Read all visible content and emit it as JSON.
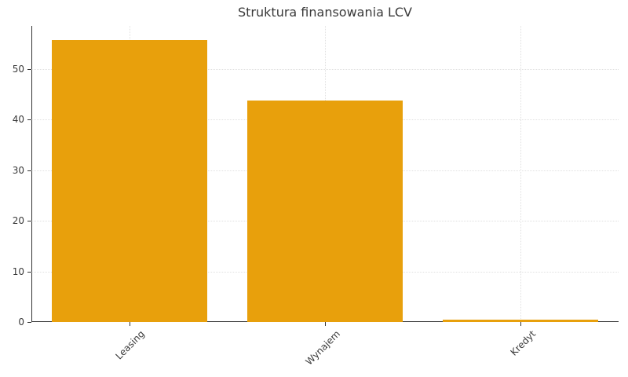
{
  "chart_data": {
    "type": "bar",
    "title": "Struktura finansowania LCV",
    "categories": [
      "Leasing",
      "Wynajem",
      "Kredyt"
    ],
    "values": [
      55.7,
      43.8,
      0.5
    ],
    "xlabel": "",
    "ylabel": "",
    "ylim": [
      0,
      58.5
    ],
    "yticks": [
      0,
      10,
      20,
      30,
      40,
      50
    ],
    "grid": "on",
    "legend": "none",
    "xtick_rotation_deg": 45,
    "colors": {
      "bar": "#E8A00C",
      "axis": "#333333",
      "grid": "#e0e0e0",
      "text": "#3a3a3a"
    }
  }
}
